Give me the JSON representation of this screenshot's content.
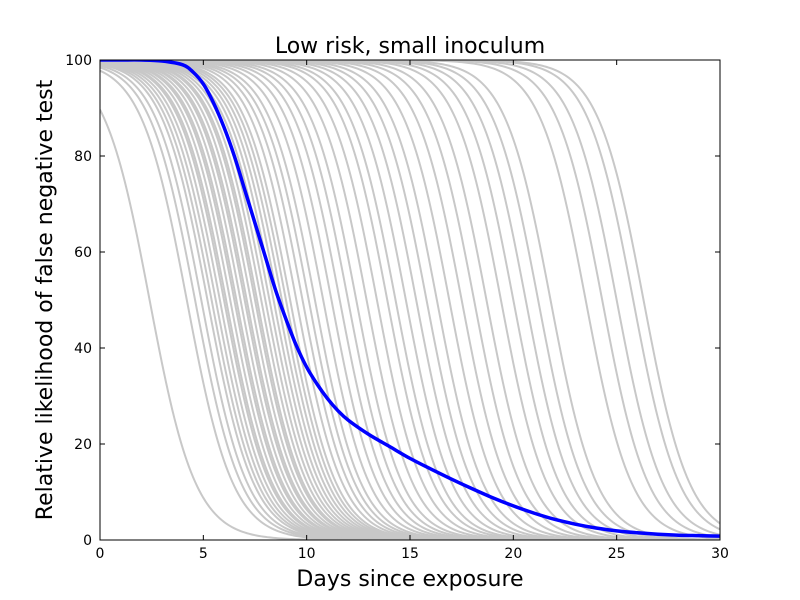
{
  "chart_data": {
    "type": "line",
    "title": "Low risk, small inoculum",
    "xlabel": "Days since exposure",
    "ylabel": "Relative likelihood of false negative test",
    "xlim": [
      0,
      30
    ],
    "ylim": [
      0,
      100
    ],
    "xticks": [
      0,
      5,
      10,
      15,
      20,
      25,
      30
    ],
    "yticks": [
      0,
      20,
      40,
      60,
      80,
      100
    ],
    "grid": false,
    "colors": {
      "simulations": "#c8c8c8",
      "mean": "#0000ff"
    },
    "mean_series": {
      "name": "mean",
      "x": [
        0,
        1,
        2,
        3,
        4,
        4.5,
        5,
        5.5,
        6,
        6.5,
        7,
        7.5,
        8,
        8.5,
        9,
        9.5,
        10,
        10.5,
        11,
        11.5,
        12,
        13,
        14,
        15,
        16,
        17,
        18,
        19,
        20,
        21,
        22,
        23,
        24,
        25,
        26,
        27,
        28,
        29,
        30
      ],
      "y": [
        100,
        100,
        100,
        99.8,
        99,
        97.5,
        95,
        91,
        86,
        80,
        73,
        66,
        59,
        52,
        46,
        40.5,
        36,
        32.5,
        29.5,
        27,
        25,
        22,
        19.5,
        17,
        14.8,
        12.7,
        10.7,
        8.8,
        7.1,
        5.6,
        4.3,
        3.3,
        2.5,
        1.9,
        1.5,
        1.2,
        1.0,
        0.9,
        0.8
      ]
    },
    "simulation_midpoints": [
      2.4,
      4.2,
      4.6,
      4.9,
      5.2,
      5.4,
      5.6,
      5.8,
      6.0,
      6.1,
      6.3,
      6.5,
      6.6,
      6.8,
      7.0,
      7.1,
      7.3,
      7.5,
      7.6,
      7.8,
      8.0,
      8.2,
      8.4,
      8.6,
      8.8,
      9.0,
      9.2,
      9.5,
      9.8,
      10.1,
      10.4,
      10.8,
      11.2,
      11.6,
      12.0,
      12.4,
      12.9,
      13.4,
      13.9,
      14.3,
      14.8,
      15.3,
      15.8,
      16.3,
      16.9,
      17.5,
      18.1,
      18.7,
      19.4,
      20.0,
      20.6,
      21.2,
      21.8,
      23.5,
      24.3,
      25.0,
      25.8,
      26.3
    ],
    "simulation_steepness": 0.9
  }
}
